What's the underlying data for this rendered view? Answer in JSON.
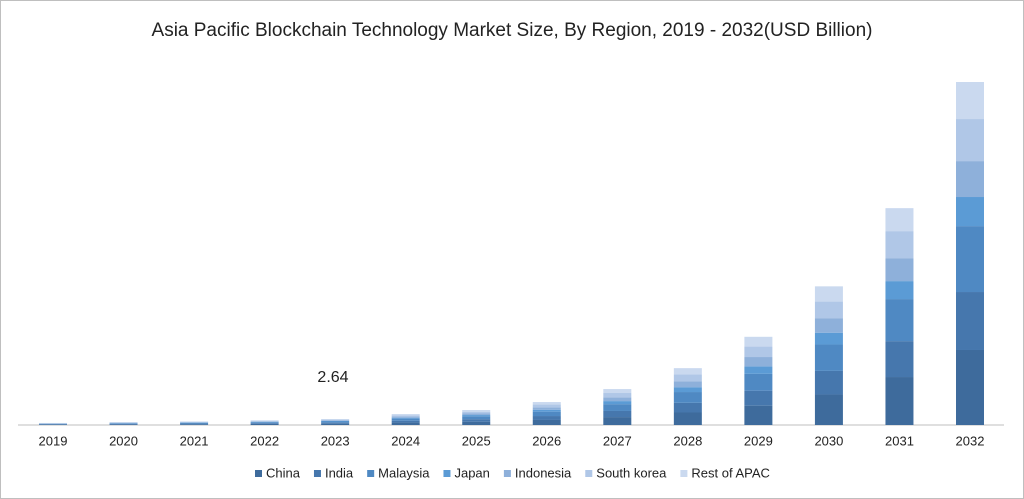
{
  "chart_data": {
    "type": "stacked_bar",
    "title": "Asia Pacific Blockchain Technology Market Size, By Region, 2019 - 2032(USD Billion)",
    "annotation": "2.64",
    "categories": [
      "2019",
      "2020",
      "2021",
      "2022",
      "2023",
      "2024",
      "2025",
      "2026",
      "2027",
      "2028",
      "2029",
      "2030",
      "2031",
      "2032"
    ],
    "series": [
      {
        "name": "China",
        "color": "#3e6b9c",
        "values": [
          0.2,
          0.29,
          0.35,
          0.46,
          0.58,
          1.06,
          1.45,
          2.22,
          3.48,
          5.5,
          8.5,
          13.4,
          21.1,
          33
        ]
      },
      {
        "name": "India",
        "color": "#4677ad",
        "values": [
          0.15,
          0.22,
          0.27,
          0.36,
          0.45,
          0.82,
          1.12,
          1.72,
          2.69,
          4.25,
          6.6,
          10.4,
          15.8,
          25.5
        ]
      },
      {
        "name": "Malaysia",
        "color": "#4f89c3",
        "values": [
          0.17,
          0.25,
          0.3,
          0.4,
          0.51,
          0.91,
          1.25,
          1.92,
          3.0,
          4.75,
          7.4,
          11.6,
          18.5,
          29
        ]
      },
      {
        "name": "Japan",
        "color": "#5b9bd5",
        "values": [
          0.08,
          0.11,
          0.14,
          0.18,
          0.22,
          0.41,
          0.56,
          0.86,
          1.34,
          2.13,
          3.3,
          5.2,
          7.9,
          12.8
        ]
      },
      {
        "name": "Indonesia",
        "color": "#8eb0da",
        "values": [
          0.09,
          0.14,
          0.17,
          0.22,
          0.28,
          0.5,
          0.69,
          1.06,
          1.66,
          2.63,
          4.1,
          6.4,
          10.1,
          15.8
        ]
      },
      {
        "name": "South korea",
        "color": "#b0c7e7",
        "values": [
          0.11,
          0.16,
          0.19,
          0.25,
          0.32,
          0.58,
          0.79,
          1.21,
          1.9,
          3.0,
          4.6,
          7.3,
          11.9,
          18.5
        ]
      },
      {
        "name": "Rest of APAC",
        "color": "#cad9ef",
        "values": [
          0.1,
          0.14,
          0.18,
          0.23,
          0.28,
          0.53,
          0.73,
          1.11,
          1.74,
          2.75,
          4.3,
          6.7,
          10.1,
          16.3
        ]
      }
    ]
  }
}
